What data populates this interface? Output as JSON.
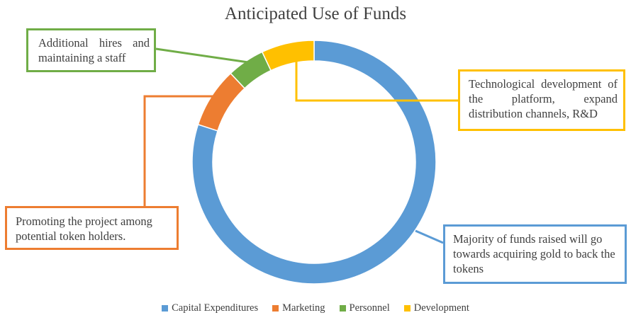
{
  "chart_data": {
    "type": "donut",
    "title": "Anticipated Use of Funds",
    "series": [
      {
        "name": "Capital Expenditures",
        "value": 80,
        "color": "#5b9bd5"
      },
      {
        "name": "Marketing",
        "value": 8,
        "color": "#ed7d31"
      },
      {
        "name": "Personnel",
        "value": 5,
        "color": "#70ad47"
      },
      {
        "name": "Development",
        "value": 7,
        "color": "#ffc000"
      }
    ],
    "legend_position": "bottom",
    "annotations": [
      {
        "series": "Personnel",
        "text": "Additional hires and maintaining a staff"
      },
      {
        "series": "Development",
        "text": "Technological development of the platform, expand distribution channels, R&D"
      },
      {
        "series": "Marketing",
        "text": "Promoting the project among potential token holders."
      },
      {
        "series": "Capital Expenditures",
        "text": "Majority of funds raised will go towards acquiring gold to back the tokens"
      }
    ]
  }
}
